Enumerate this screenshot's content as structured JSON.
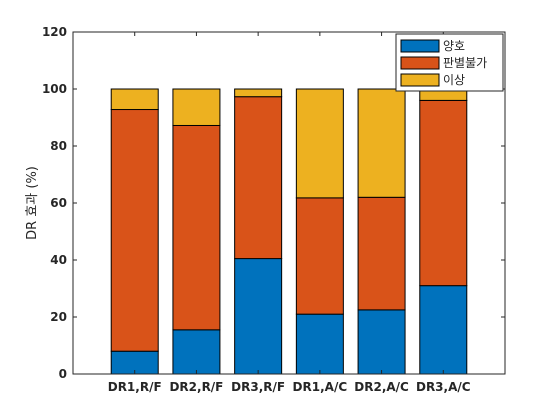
{
  "chart_data": {
    "type": "bar",
    "stacked": true,
    "title": "",
    "xlabel": "",
    "ylabel": "DR 효과 (%)",
    "ylim": [
      0,
      120
    ],
    "yticks": [
      0,
      20,
      40,
      60,
      80,
      100,
      120
    ],
    "grid": false,
    "legend": {
      "position": "top-right"
    },
    "categories": [
      "DR1,R/F",
      "DR2,R/F",
      "DR3,R/F",
      "DR1,A/C",
      "DR2,A/C",
      "DR3,A/C"
    ],
    "series": [
      {
        "name": "양호",
        "color": "#0072BD",
        "values": [
          8,
          15.5,
          40.5,
          21,
          22.5,
          31
        ]
      },
      {
        "name": "판별불가",
        "color": "#D95319",
        "values": [
          84.8,
          71.7,
          56.8,
          40.8,
          39.5,
          65
        ]
      },
      {
        "name": "이상",
        "color": "#EDB120",
        "values": [
          7.2,
          12.8,
          2.7,
          38.2,
          38,
          4
        ]
      }
    ]
  }
}
